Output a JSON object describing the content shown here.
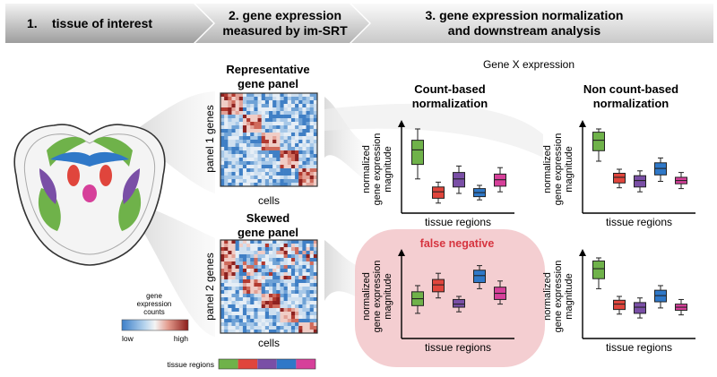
{
  "steps": [
    {
      "number": "1.",
      "label": "tissue of interest"
    },
    {
      "line1": "2. gene expression",
      "line2": "measured by im-SRT"
    },
    {
      "line1": "3. gene expression normalization",
      "line2": "and downstream analysis"
    }
  ],
  "legend": {
    "title_lines": [
      "gene",
      "expression",
      "counts"
    ],
    "low": "low",
    "high": "high",
    "tissue_regions": "tissue regions",
    "region_colors": [
      "#6fb24a",
      "#e0453c",
      "#7a4fa6",
      "#2f78c8",
      "#d6409a"
    ]
  },
  "panels": {
    "representative": {
      "title_line1": "Representative",
      "title_line2": "gene panel",
      "ylabel": "panel 1 genes",
      "xlabel": "cells"
    },
    "skewed": {
      "title_line1": "Skewed",
      "title_line2": "gene panel",
      "ylabel": "panel 2 genes",
      "xlabel": "cells"
    }
  },
  "analysis": {
    "header": "Gene X expression",
    "count_based": {
      "line1": "Count-based",
      "line2": "normalization"
    },
    "non_count_based": {
      "line1": "Non count-based",
      "line2": "normalization"
    },
    "false_negative": "false negative",
    "ylabel_lines": [
      "normalized",
      "gene expression",
      "magnitude"
    ],
    "xlabel": "tissue regions"
  },
  "boxplots": {
    "count_representative": [
      {
        "region": "green",
        "median": 0.74,
        "q1": 0.56,
        "q3": 0.86,
        "min": 0.38,
        "max": 1.0
      },
      {
        "region": "red",
        "median": 0.22,
        "q1": 0.14,
        "q3": 0.28,
        "min": 0.08,
        "max": 0.34
      },
      {
        "region": "purple",
        "median": 0.38,
        "q1": 0.28,
        "q3": 0.46,
        "min": 0.2,
        "max": 0.54
      },
      {
        "region": "blue",
        "median": 0.21,
        "q1": 0.16,
        "q3": 0.26,
        "min": 0.12,
        "max": 0.3
      },
      {
        "region": "pink",
        "median": 0.37,
        "q1": 0.29,
        "q3": 0.44,
        "min": 0.22,
        "max": 0.52
      }
    ],
    "noncount_representative": [
      {
        "region": "green",
        "median": 0.86,
        "q1": 0.73,
        "q3": 0.96,
        "min": 0.6,
        "max": 1.0
      },
      {
        "region": "red",
        "median": 0.4,
        "q1": 0.33,
        "q3": 0.45,
        "min": 0.27,
        "max": 0.5
      },
      {
        "region": "purple",
        "median": 0.36,
        "q1": 0.28,
        "q3": 0.42,
        "min": 0.22,
        "max": 0.48
      },
      {
        "region": "blue",
        "median": 0.51,
        "q1": 0.43,
        "q3": 0.58,
        "min": 0.35,
        "max": 0.64
      },
      {
        "region": "pink",
        "median": 0.36,
        "q1": 0.32,
        "q3": 0.4,
        "min": 0.26,
        "max": 0.46
      }
    ],
    "count_skewed": [
      {
        "region": "green",
        "median": 0.47,
        "q1": 0.38,
        "q3": 0.56,
        "min": 0.28,
        "max": 0.64
      },
      {
        "region": "red",
        "median": 0.65,
        "q1": 0.56,
        "q3": 0.72,
        "min": 0.48,
        "max": 0.8
      },
      {
        "region": "purple",
        "median": 0.4,
        "q1": 0.36,
        "q3": 0.46,
        "min": 0.3,
        "max": 0.5
      },
      {
        "region": "blue",
        "median": 0.77,
        "q1": 0.68,
        "q3": 0.84,
        "min": 0.6,
        "max": 0.9
      },
      {
        "region": "pink",
        "median": 0.54,
        "q1": 0.46,
        "q3": 0.62,
        "min": 0.4,
        "max": 0.7
      }
    ],
    "noncount_skewed": [
      {
        "region": "green",
        "median": 0.86,
        "q1": 0.73,
        "q3": 0.96,
        "min": 0.6,
        "max": 1.0
      },
      {
        "region": "red",
        "median": 0.4,
        "q1": 0.33,
        "q3": 0.45,
        "min": 0.27,
        "max": 0.5
      },
      {
        "region": "purple",
        "median": 0.36,
        "q1": 0.28,
        "q3": 0.42,
        "min": 0.22,
        "max": 0.48
      },
      {
        "region": "blue",
        "median": 0.51,
        "q1": 0.43,
        "q3": 0.58,
        "min": 0.35,
        "max": 0.64
      },
      {
        "region": "pink",
        "median": 0.36,
        "q1": 0.32,
        "q3": 0.4,
        "min": 0.26,
        "max": 0.46
      }
    ]
  }
}
